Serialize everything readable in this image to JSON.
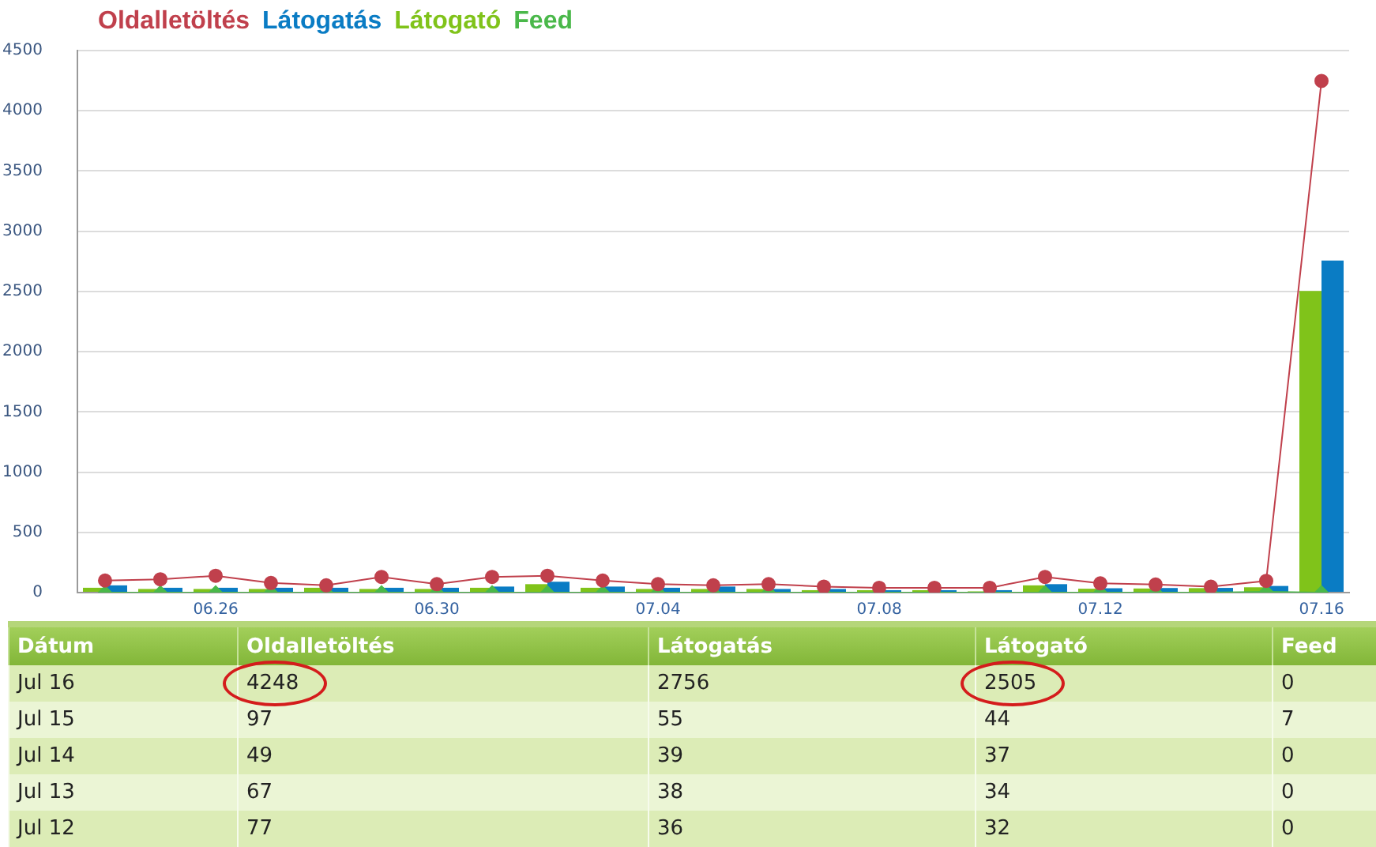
{
  "chart_data": [
    {
      "type": "bar",
      "categories": [
        null,
        null,
        "06.26",
        null,
        null,
        null,
        "06.30",
        null,
        null,
        null,
        "07.04",
        null,
        null,
        null,
        "07.08",
        null,
        null,
        null,
        "07.12",
        null,
        null,
        null,
        "07.16"
      ],
      "series": [
        {
          "name": "Oldalletöltés",
          "type": "line",
          "marker": "circle",
          "color": "#c0404c",
          "values": [
            100,
            110,
            140,
            80,
            60,
            130,
            70,
            130,
            140,
            100,
            70,
            60,
            70,
            50,
            40,
            40,
            40,
            130,
            77,
            67,
            49,
            97,
            4248
          ]
        },
        {
          "name": "Látogatás",
          "color": "#0a7cc4",
          "values": [
            60,
            40,
            40,
            40,
            40,
            40,
            40,
            50,
            90,
            50,
            40,
            50,
            30,
            30,
            20,
            20,
            20,
            70,
            36,
            38,
            39,
            55,
            2756
          ]
        },
        {
          "name": "Látogató",
          "color": "#80c31a",
          "values": [
            40,
            30,
            30,
            30,
            40,
            30,
            30,
            40,
            70,
            40,
            30,
            30,
            30,
            20,
            20,
            20,
            10,
            60,
            32,
            34,
            37,
            44,
            2505
          ]
        },
        {
          "name": "Feed",
          "type": "line",
          "marker": "diamond",
          "color": "#4ab84a",
          "values": [
            0,
            0,
            0,
            0,
            0,
            0,
            0,
            0,
            0,
            0,
            0,
            0,
            0,
            0,
            0,
            0,
            0,
            0,
            0,
            0,
            0,
            7,
            0
          ]
        }
      ],
      "ylim": [
        0,
        4500
      ],
      "yticks": [
        0,
        500,
        1000,
        1500,
        2000,
        2500,
        3000,
        3500,
        4000,
        4500
      ],
      "grid": "y",
      "legend": "top left"
    },
    {
      "type": "other",
      "ylabel": "Dátum",
      "categories": [
        "Oldalletöltés",
        "Látogatás",
        "Látogató",
        "Feed"
      ],
      "y_categories": [
        "Jul 16",
        "Jul 15",
        "Jul 14",
        "Jul 13",
        "Jul 12"
      ],
      "cell_labels": [
        [
          "4248",
          "2756",
          "2505",
          "0"
        ],
        [
          "97",
          "55",
          "44",
          "7"
        ],
        [
          "49",
          "39",
          "37",
          "0"
        ],
        [
          "67",
          "38",
          "34",
          "0"
        ],
        [
          "77",
          "36",
          "32",
          "0"
        ]
      ]
    }
  ]
}
